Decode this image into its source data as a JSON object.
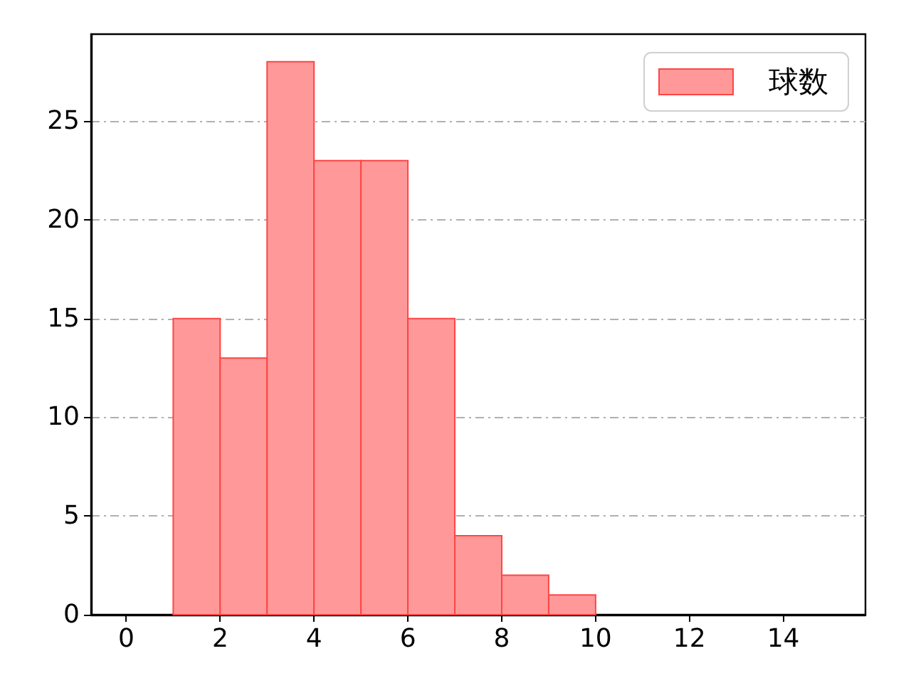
{
  "chart_data": {
    "type": "histogram",
    "bins": [
      1,
      2,
      3,
      4,
      5,
      6,
      7,
      8,
      9,
      10
    ],
    "series": [
      {
        "name": "球数",
        "color": "#ff9999",
        "values": [
          15,
          13,
          28,
          23,
          23,
          15,
          4,
          2,
          1
        ]
      }
    ],
    "xlim": [
      -0.75,
      15.75
    ],
    "xticks": [
      0,
      2,
      4,
      6,
      8,
      10,
      12,
      14
    ],
    "ylim": [
      0,
      29.4
    ],
    "yticks": [
      0,
      5,
      10,
      15,
      20,
      25
    ],
    "grid": "y",
    "legend": "top right"
  }
}
